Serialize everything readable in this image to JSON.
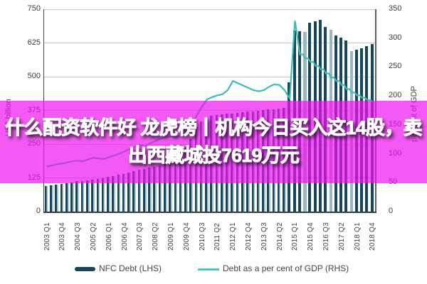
{
  "overlay": {
    "line1": "什么配资软件好 龙虎榜丨机构今日买入这14股，卖",
    "line2": "出西藏城投7619万元",
    "band_color": "#ee12ee",
    "band_alpha": 0.7,
    "text_color": "#ffffff"
  },
  "chart_data": {
    "type": "bar+line",
    "categories": [
      "2003 Q1",
      "2003 Q2",
      "2003 Q3",
      "2003 Q4",
      "2004 Q1",
      "2004 Q2",
      "2004 Q3",
      "2004 Q4",
      "2005 Q1",
      "2005 Q2",
      "2005 Q3",
      "2005 Q4",
      "2006 Q1",
      "2006 Q2",
      "2006 Q3",
      "2006 Q4",
      "2007 Q1",
      "2007 Q2",
      "2007 Q3",
      "2007 Q4",
      "2008 Q1",
      "2008 Q2",
      "2008 Q3",
      "2008 Q4",
      "2009 Q1",
      "2009 Q2",
      "2009 Q3",
      "2009 Q4",
      "2010 Q1",
      "2010 Q2",
      "2010 Q3",
      "2010 Q4",
      "2011 Q1",
      "2011 Q2",
      "2011 Q3",
      "2011 Q4",
      "2012 Q1",
      "2012 Q2",
      "2012 Q3",
      "2012 Q4",
      "2013 Q1",
      "2013 Q2",
      "2013 Q3",
      "2013 Q4",
      "2014 Q1",
      "2014 Q2",
      "2014 Q3",
      "2014 Q4",
      "2015 Q1",
      "2015 Q2",
      "2015 Q3",
      "2015 Q4",
      "2016 Q1",
      "2016 Q2",
      "2016 Q3",
      "2016 Q4",
      "2017 Q1",
      "2017 Q2",
      "2017 Q3",
      "2017 Q4",
      "2018 Q1",
      "2018 Q2",
      "2018 Q3",
      "2018 Q4"
    ],
    "x_tick_labels": [
      "2003 Q1",
      "2003 Q4",
      "2004 Q3",
      "2005 Q2",
      "2006 Q1",
      "2006 Q4",
      "2007 Q3",
      "2008 Q2",
      "2009 Q1",
      "2009 Q4",
      "2010 Q3",
      "2011 Q2",
      "2012 Q1",
      "2012 Q4",
      "2013 Q3",
      "2014 Q2",
      "2015 Q1",
      "2015 Q4",
      "2016 Q3",
      "2017 Q2",
      "2018 Q1",
      "2018 Q4"
    ],
    "tick_every": 3,
    "series": [
      {
        "name": "NFC Debt (LHS)",
        "type": "bar",
        "axis": "left",
        "color": "#16465f",
        "color_light": "#a9c6d6",
        "values": [
          95,
          97,
          100,
          103,
          106,
          109,
          112,
          114,
          117,
          119,
          122,
          125,
          128,
          132,
          136,
          140,
          144,
          149,
          154,
          158,
          162,
          167,
          172,
          177,
          182,
          195,
          215,
          240,
          270,
          305,
          335,
          350,
          355,
          358,
          360,
          362,
          364,
          366,
          368,
          370,
          372,
          374,
          376,
          378,
          380,
          382,
          384,
          480,
          672,
          668,
          666,
          700,
          706,
          710,
          684,
          674,
          653,
          645,
          634,
          595,
          600,
          605,
          613,
          620
        ]
      },
      {
        "name": "Debt as a per cent of GDP (RHS)",
        "type": "line",
        "axis": "right",
        "color": "#3cbcb2",
        "values": [
          78,
          80,
          82,
          83,
          85,
          87,
          88,
          87,
          90,
          93,
          92,
          91,
          94,
          97,
          100,
          104,
          108,
          112,
          115,
          113,
          118,
          122,
          126,
          129,
          130,
          129,
          131,
          140,
          152,
          166,
          181,
          194,
          198,
          201,
          203,
          210,
          226,
          222,
          218,
          214,
          210,
          208,
          210,
          216,
          220,
          219,
          210,
          196,
          330,
          272,
          265,
          259,
          252,
          246,
          239,
          232,
          226,
          219,
          212,
          206,
          201,
          197,
          193,
          190
        ]
      }
    ],
    "light_bar_indices": [
      50,
      55,
      59
    ],
    "light_bar_color": "#9db6c4",
    "left_axis": {
      "label": "US$ billion",
      "min": 0,
      "max": 750,
      "step": 125
    },
    "right_axis": {
      "label": "per cent of GDP",
      "min": 0,
      "max": 350,
      "step": 50
    },
    "grid": true,
    "legend_position": "bottom"
  },
  "legend": {
    "items": [
      {
        "label": "NFC Debt (LHS)",
        "color": "#16465f",
        "shape": "thick-bar"
      },
      {
        "label": "Debt as a per cent of GDP (RHS)",
        "color": "#4cc8bf",
        "shape": "line"
      }
    ]
  }
}
